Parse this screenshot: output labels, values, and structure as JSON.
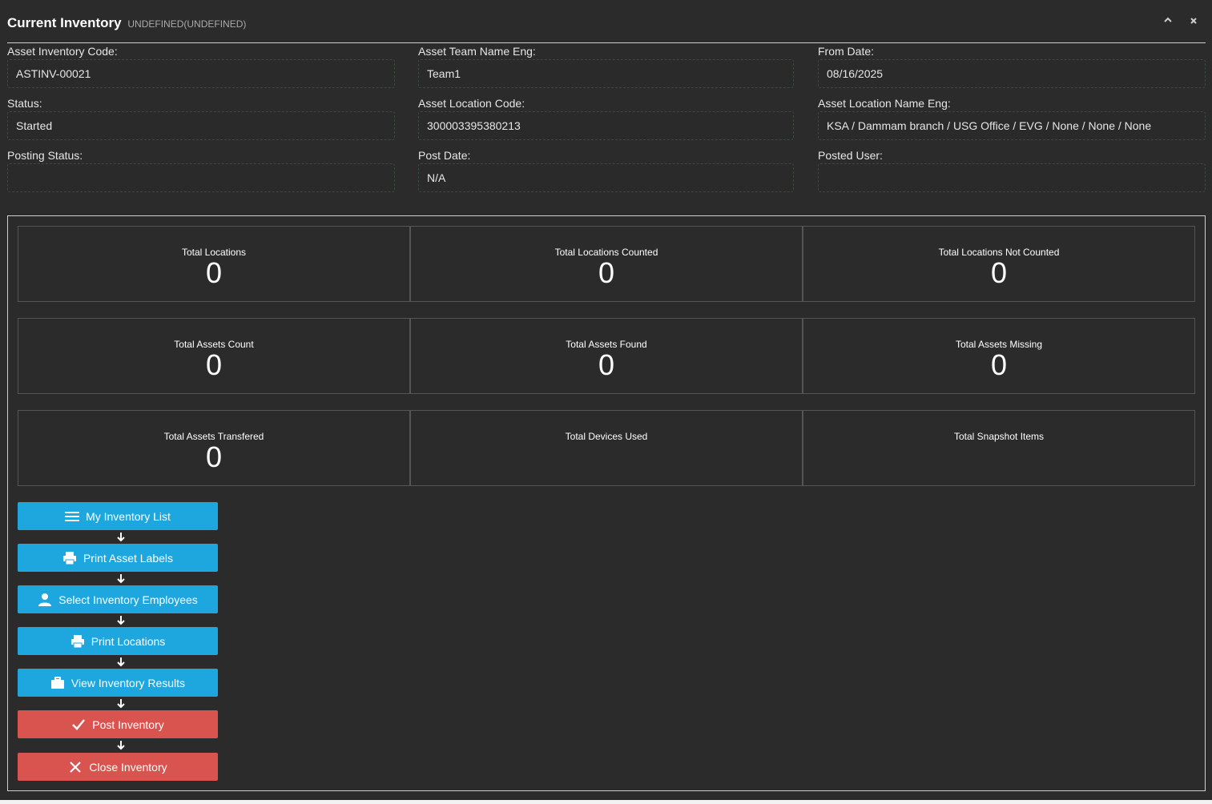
{
  "header": {
    "title": "Current Inventory",
    "subtitle": "UNDEFINED(UNDEFINED)",
    "collapse_icon": "chevron-up-icon",
    "close_icon": "close-icon"
  },
  "fields": {
    "asset_inventory_code": {
      "label": "Asset Inventory Code:",
      "value": "ASTINV-00021"
    },
    "asset_team_name_eng": {
      "label": "Asset Team Name Eng:",
      "value": "Team1"
    },
    "from_date": {
      "label": "From Date:",
      "value": "08/16/2025"
    },
    "status": {
      "label": "Status:",
      "value": "Started"
    },
    "asset_location_code": {
      "label": "Asset Location Code:",
      "value": "300003395380213"
    },
    "asset_location_name_eng": {
      "label": "Asset Location Name Eng:",
      "value": "KSA / Dammam branch / USG Office / EVG / None / None / None"
    },
    "posting_status": {
      "label": "Posting Status:",
      "value": ""
    },
    "post_date": {
      "label": "Post Date:",
      "value": "N/A"
    },
    "posted_user": {
      "label": "Posted User:",
      "value": ""
    }
  },
  "stats": {
    "total_locations": {
      "label": "Total Locations",
      "value": "0"
    },
    "total_locations_counted": {
      "label": "Total Locations Counted",
      "value": "0"
    },
    "total_locations_not_counted": {
      "label": "Total Locations Not Counted",
      "value": "0"
    },
    "total_assets_count": {
      "label": "Total Assets Count",
      "value": "0"
    },
    "total_assets_found": {
      "label": "Total Assets Found",
      "value": "0"
    },
    "total_assets_missing": {
      "label": "Total Assets Missing",
      "value": "0"
    },
    "total_assets_transfered": {
      "label": "Total Assets Transfered",
      "value": "0"
    },
    "total_devices_used": {
      "label": "Total Devices Used",
      "value": ""
    },
    "total_snapshot_items": {
      "label": "Total Snapshot Items",
      "value": ""
    }
  },
  "workflow": {
    "my_inventory_list": {
      "label": "My Inventory List",
      "icon": "list-icon",
      "color": "#1ea6df"
    },
    "print_asset_labels": {
      "label": "Print Asset Labels",
      "icon": "printer-icon",
      "color": "#1ea6df"
    },
    "select_inventory_employees": {
      "label": "Select Inventory Employees",
      "icon": "user-icon",
      "color": "#1ea6df"
    },
    "print_locations": {
      "label": "Print Locations",
      "icon": "printer-icon",
      "color": "#1ea6df"
    },
    "view_inventory_results": {
      "label": "View Inventory Results",
      "icon": "briefcase-icon",
      "color": "#1ea6df"
    },
    "post_inventory": {
      "label": "Post Inventory",
      "icon": "check-icon",
      "color": "#d9534f"
    },
    "close_inventory": {
      "label": "Close Inventory",
      "icon": "x-icon",
      "color": "#d9534f"
    }
  }
}
